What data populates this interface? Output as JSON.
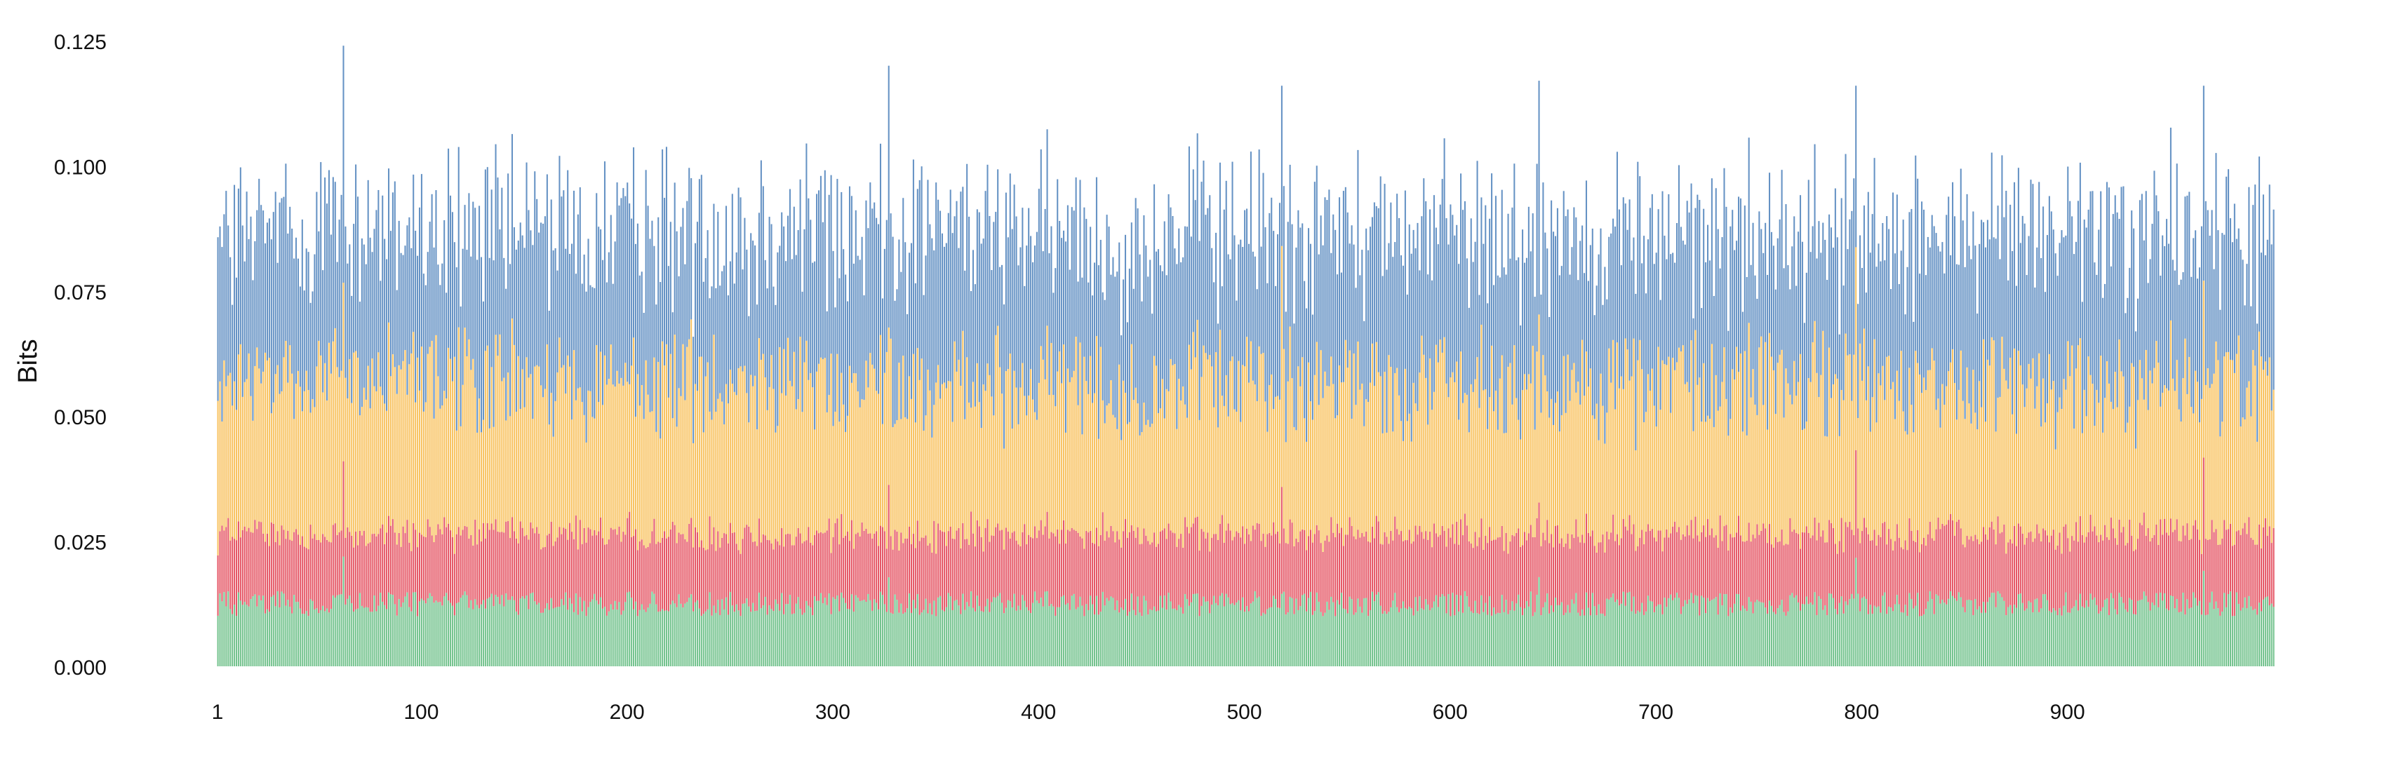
{
  "chart_data": {
    "type": "bar",
    "title": "",
    "xlabel": "",
    "ylabel": "Bits",
    "xlim": [
      1,
      1000
    ],
    "ylim": [
      0,
      0.125
    ],
    "x_ticks": [
      1,
      100,
      200,
      300,
      400,
      500,
      600,
      700,
      800,
      900
    ],
    "y_ticks": [
      0.0,
      0.025,
      0.05,
      0.075,
      0.1,
      0.125
    ],
    "y_tick_labels": [
      "0.000",
      "0.025",
      "0.050",
      "0.075",
      "0.100",
      "0.125"
    ],
    "grid": false,
    "legend": "none",
    "stacked": true,
    "n_positions": 1000,
    "series": [
      {
        "color": "#5cb87a",
        "typical_range": [
          0.01,
          0.015
        ]
      },
      {
        "color": "#e03a4b",
        "typical_range": [
          0.012,
          0.016
        ]
      },
      {
        "color": "#f7b947",
        "typical_range": [
          0.02,
          0.04
        ]
      },
      {
        "color": "#4a7fba",
        "typical_range": [
          0.02,
          0.04
        ]
      }
    ],
    "highlights": [
      {
        "position": 62,
        "total": 0.124
      },
      {
        "position": 327,
        "total": 0.12
      },
      {
        "position": 518,
        "total": 0.116
      },
      {
        "position": 643,
        "total": 0.117
      },
      {
        "position": 797,
        "total": 0.116
      },
      {
        "position": 966,
        "total": 0.116
      }
    ]
  }
}
